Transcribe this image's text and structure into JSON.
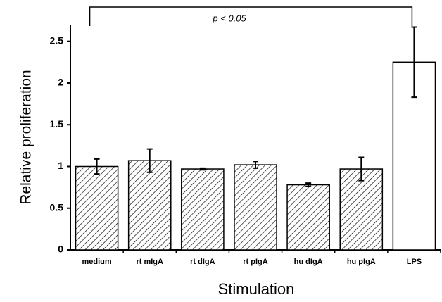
{
  "chart_data": {
    "type": "bar",
    "annotation": "p < 0.05",
    "xlabel": "Stimulation",
    "ylabel": "Relative proliferation",
    "categories": [
      "medium",
      "rt mIgA",
      "rt dIgA",
      "rt pIgA",
      "hu dIgA",
      "hu pIgA",
      "LPS"
    ],
    "values": [
      1.0,
      1.07,
      0.97,
      1.02,
      0.78,
      0.97,
      2.25
    ],
    "errors": [
      0.09,
      0.14,
      0.01,
      0.04,
      0.02,
      0.14,
      0.42
    ],
    "bar_fill": [
      "hatched",
      "hatched",
      "hatched",
      "hatched",
      "hatched",
      "hatched",
      "white"
    ],
    "color": "#000000",
    "ylim": [
      0,
      2.7
    ],
    "yticks": [
      0,
      0.5,
      1,
      1.5,
      2,
      2.5
    ]
  }
}
